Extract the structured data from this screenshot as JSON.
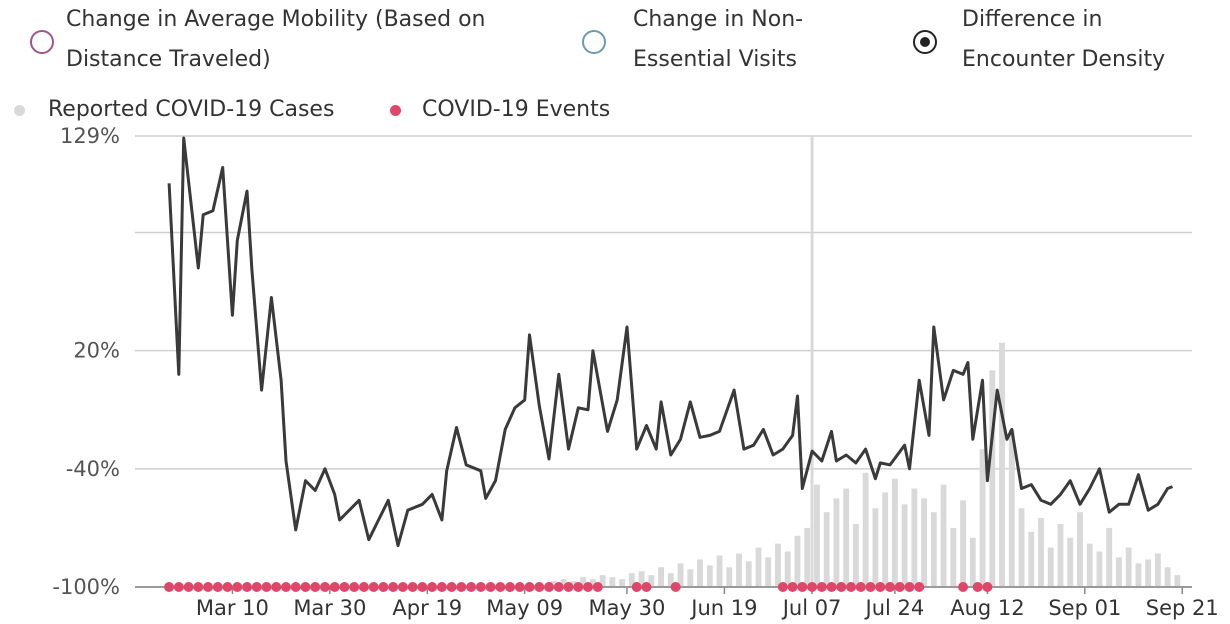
{
  "chart_data": {
    "type": "line",
    "legend": [
      {
        "label": "Change in Average Mobility (Based on Distance Traveled)",
        "color": "#a0558f",
        "selected": false
      },
      {
        "label": "Change in Non-Essential Visits",
        "color": "#6a9cb0",
        "selected": false
      },
      {
        "label": "Difference in Encounter Density",
        "color": "#222222",
        "selected": true
      }
    ],
    "xlim": [
      "Feb 19",
      "Sep 23"
    ],
    "xticks": [
      "Mar 10",
      "Mar 30",
      "Apr 19",
      "May 09",
      "May 30",
      "Jun 19",
      "Jul 07",
      "Jul 24",
      "Aug 12",
      "Sep 01",
      "Sep 21"
    ],
    "ylim": [
      -100,
      129
    ],
    "yticks": [
      {
        "value": 129,
        "label": "129%"
      },
      {
        "value": 20,
        "label": "20%"
      },
      {
        "value": -40,
        "label": "-40%"
      },
      {
        "value": -100,
        "label": "-100%"
      }
    ],
    "ygrid": [
      129,
      80,
      20,
      -40,
      -100
    ],
    "crosshair": "Jul 07",
    "series": [
      {
        "name": "Difference in Encounter Density",
        "color": "#3a3a3a",
        "x": [
          "Feb 26",
          "Feb 28",
          "Feb 29",
          "Mar 03",
          "Mar 04",
          "Mar 06",
          "Mar 08",
          "Mar 10",
          "Mar 11",
          "Mar 13",
          "Mar 14",
          "Mar 16",
          "Mar 18",
          "Mar 20",
          "Mar 21",
          "Mar 23",
          "Mar 25",
          "Mar 27",
          "Mar 29",
          "Mar 31",
          "Apr 01",
          "Apr 03",
          "Apr 05",
          "Apr 07",
          "Apr 09",
          "Apr 11",
          "Apr 13",
          "Apr 15",
          "Apr 18",
          "Apr 20",
          "Apr 22",
          "Apr 23",
          "Apr 25",
          "Apr 27",
          "Apr 30",
          "May 01",
          "May 03",
          "May 05",
          "May 07",
          "May 09",
          "May 10",
          "May 12",
          "May 14",
          "May 16",
          "May 18",
          "May 20",
          "May 22",
          "May 23",
          "May 26",
          "May 28",
          "May 30",
          "Jun 01",
          "Jun 03",
          "Jun 05",
          "Jun 06",
          "Jun 08",
          "Jun 10",
          "Jun 12",
          "Jun 14",
          "Jun 16",
          "Jun 18",
          "Jun 21",
          "Jun 23",
          "Jun 25",
          "Jun 27",
          "Jun 29",
          "Jul 01",
          "Jul 03",
          "Jul 04",
          "Jul 05",
          "Jul 07",
          "Jul 09",
          "Jul 11",
          "Jul 12",
          "Jul 14",
          "Jul 16",
          "Jul 18",
          "Jul 20",
          "Jul 21",
          "Jul 23",
          "Jul 26",
          "Jul 27",
          "Jul 29",
          "Jul 31",
          "Aug 01",
          "Aug 03",
          "Aug 05",
          "Aug 07",
          "Aug 08",
          "Aug 09",
          "Aug 11",
          "Aug 12",
          "Aug 14",
          "Aug 16",
          "Aug 17",
          "Aug 19",
          "Aug 21",
          "Aug 23",
          "Aug 25",
          "Aug 27",
          "Aug 29",
          "Aug 31",
          "Sep 02",
          "Sep 04",
          "Sep 06",
          "Sep 08",
          "Sep 10",
          "Sep 12",
          "Sep 14",
          "Sep 16",
          "Sep 18",
          "Sep 19"
        ],
        "values": [
          105,
          8,
          128,
          62,
          89,
          91,
          113,
          38,
          76,
          101,
          61,
          0,
          47,
          5,
          -36,
          -71,
          -46,
          -51,
          -40,
          -53,
          -66,
          -61,
          -56,
          -76,
          -66,
          -56,
          -79,
          -61,
          -58,
          -53,
          -66,
          -41,
          -19,
          -38,
          -41,
          -55,
          -46,
          -20,
          -9,
          -5,
          28,
          -8,
          -35,
          8,
          -30,
          -9,
          -10,
          20,
          -21,
          -5,
          32,
          -30,
          -18,
          -30,
          -6,
          -33,
          -25,
          -6,
          -24,
          -23,
          -21,
          0,
          -30,
          -28,
          -20,
          -33,
          -30,
          -23,
          -3,
          -50,
          -31,
          -36,
          -21,
          -36,
          -33,
          -37,
          -30,
          -45,
          -37,
          -38,
          -28,
          -40,
          5,
          -23,
          32,
          -5,
          10,
          8,
          14,
          -25,
          5,
          -46,
          0,
          -25,
          -20,
          -50,
          -48,
          -56,
          -58,
          -53,
          -46,
          -58,
          -50,
          -40,
          -62,
          -58,
          -58,
          -43,
          -61,
          -58,
          -50,
          -49
        ]
      },
      {
        "name": "Reported COVID-19 Cases",
        "color": "#d9d9d9",
        "x": [
          "May 15",
          "May 17",
          "May 19",
          "May 21",
          "May 23",
          "May 25",
          "May 27",
          "May 29",
          "May 31",
          "Jun 02",
          "Jun 04",
          "Jun 06",
          "Jun 08",
          "Jun 10",
          "Jun 12",
          "Jun 14",
          "Jun 16",
          "Jun 18",
          "Jun 20",
          "Jun 22",
          "Jun 24",
          "Jun 26",
          "Jun 28",
          "Jun 30",
          "Jul 02",
          "Jul 04",
          "Jul 06",
          "Jul 08",
          "Jul 10",
          "Jul 12",
          "Jul 14",
          "Jul 16",
          "Jul 18",
          "Jul 20",
          "Jul 22",
          "Jul 24",
          "Jul 26",
          "Jul 28",
          "Jul 30",
          "Aug 01",
          "Aug 03",
          "Aug 05",
          "Aug 07",
          "Aug 09",
          "Aug 11",
          "Aug 13",
          "Aug 15",
          "Aug 17",
          "Aug 19",
          "Aug 21",
          "Aug 23",
          "Aug 25",
          "Aug 27",
          "Aug 29",
          "Aug 31",
          "Sep 02",
          "Sep 04",
          "Sep 06",
          "Sep 08",
          "Sep 10",
          "Sep 12",
          "Sep 14",
          "Sep 16",
          "Sep 18",
          "Sep 20"
        ],
        "values": [
          -97,
          -96,
          -97,
          -95,
          -96,
          -94,
          -95,
          -96,
          -93,
          -92,
          -94,
          -90,
          -93,
          -88,
          -91,
          -86,
          -89,
          -84,
          -90,
          -83,
          -87,
          -80,
          -85,
          -78,
          -82,
          -74,
          -70,
          -48,
          -62,
          -55,
          -50,
          -68,
          -42,
          -60,
          -52,
          -45,
          -58,
          -50,
          -55,
          -62,
          -48,
          -70,
          -56,
          -75,
          -30,
          10,
          24,
          -20,
          -60,
          -72,
          -65,
          -80,
          -68,
          -75,
          -62,
          -78,
          -82,
          -70,
          -85,
          -80,
          -88,
          -86,
          -83,
          -90,
          -94
        ]
      },
      {
        "name": "COVID-19 Events",
        "color": "#e0456a",
        "x": [
          "Feb 26",
          "Feb 28",
          "Mar 01",
          "Mar 03",
          "Mar 05",
          "Mar 07",
          "Mar 09",
          "Mar 11",
          "Mar 13",
          "Mar 15",
          "Mar 17",
          "Mar 19",
          "Mar 21",
          "Mar 23",
          "Mar 25",
          "Mar 27",
          "Mar 29",
          "Mar 31",
          "Apr 02",
          "Apr 04",
          "Apr 06",
          "Apr 08",
          "Apr 10",
          "Apr 12",
          "Apr 14",
          "Apr 16",
          "Apr 18",
          "Apr 20",
          "Apr 22",
          "Apr 24",
          "Apr 26",
          "Apr 28",
          "Apr 30",
          "May 02",
          "May 04",
          "May 06",
          "May 08",
          "May 10",
          "May 12",
          "May 14",
          "May 16",
          "May 18",
          "May 20",
          "May 22",
          "May 24",
          "Jun 01",
          "Jun 03",
          "Jun 09",
          "Jul 01",
          "Jul 03",
          "Jul 05",
          "Jul 07",
          "Jul 09",
          "Jul 11",
          "Jul 13",
          "Jul 15",
          "Jul 17",
          "Jul 19",
          "Jul 21",
          "Jul 23",
          "Jul 25",
          "Jul 27",
          "Jul 29",
          "Aug 07",
          "Aug 10",
          "Aug 12"
        ]
      }
    ]
  }
}
